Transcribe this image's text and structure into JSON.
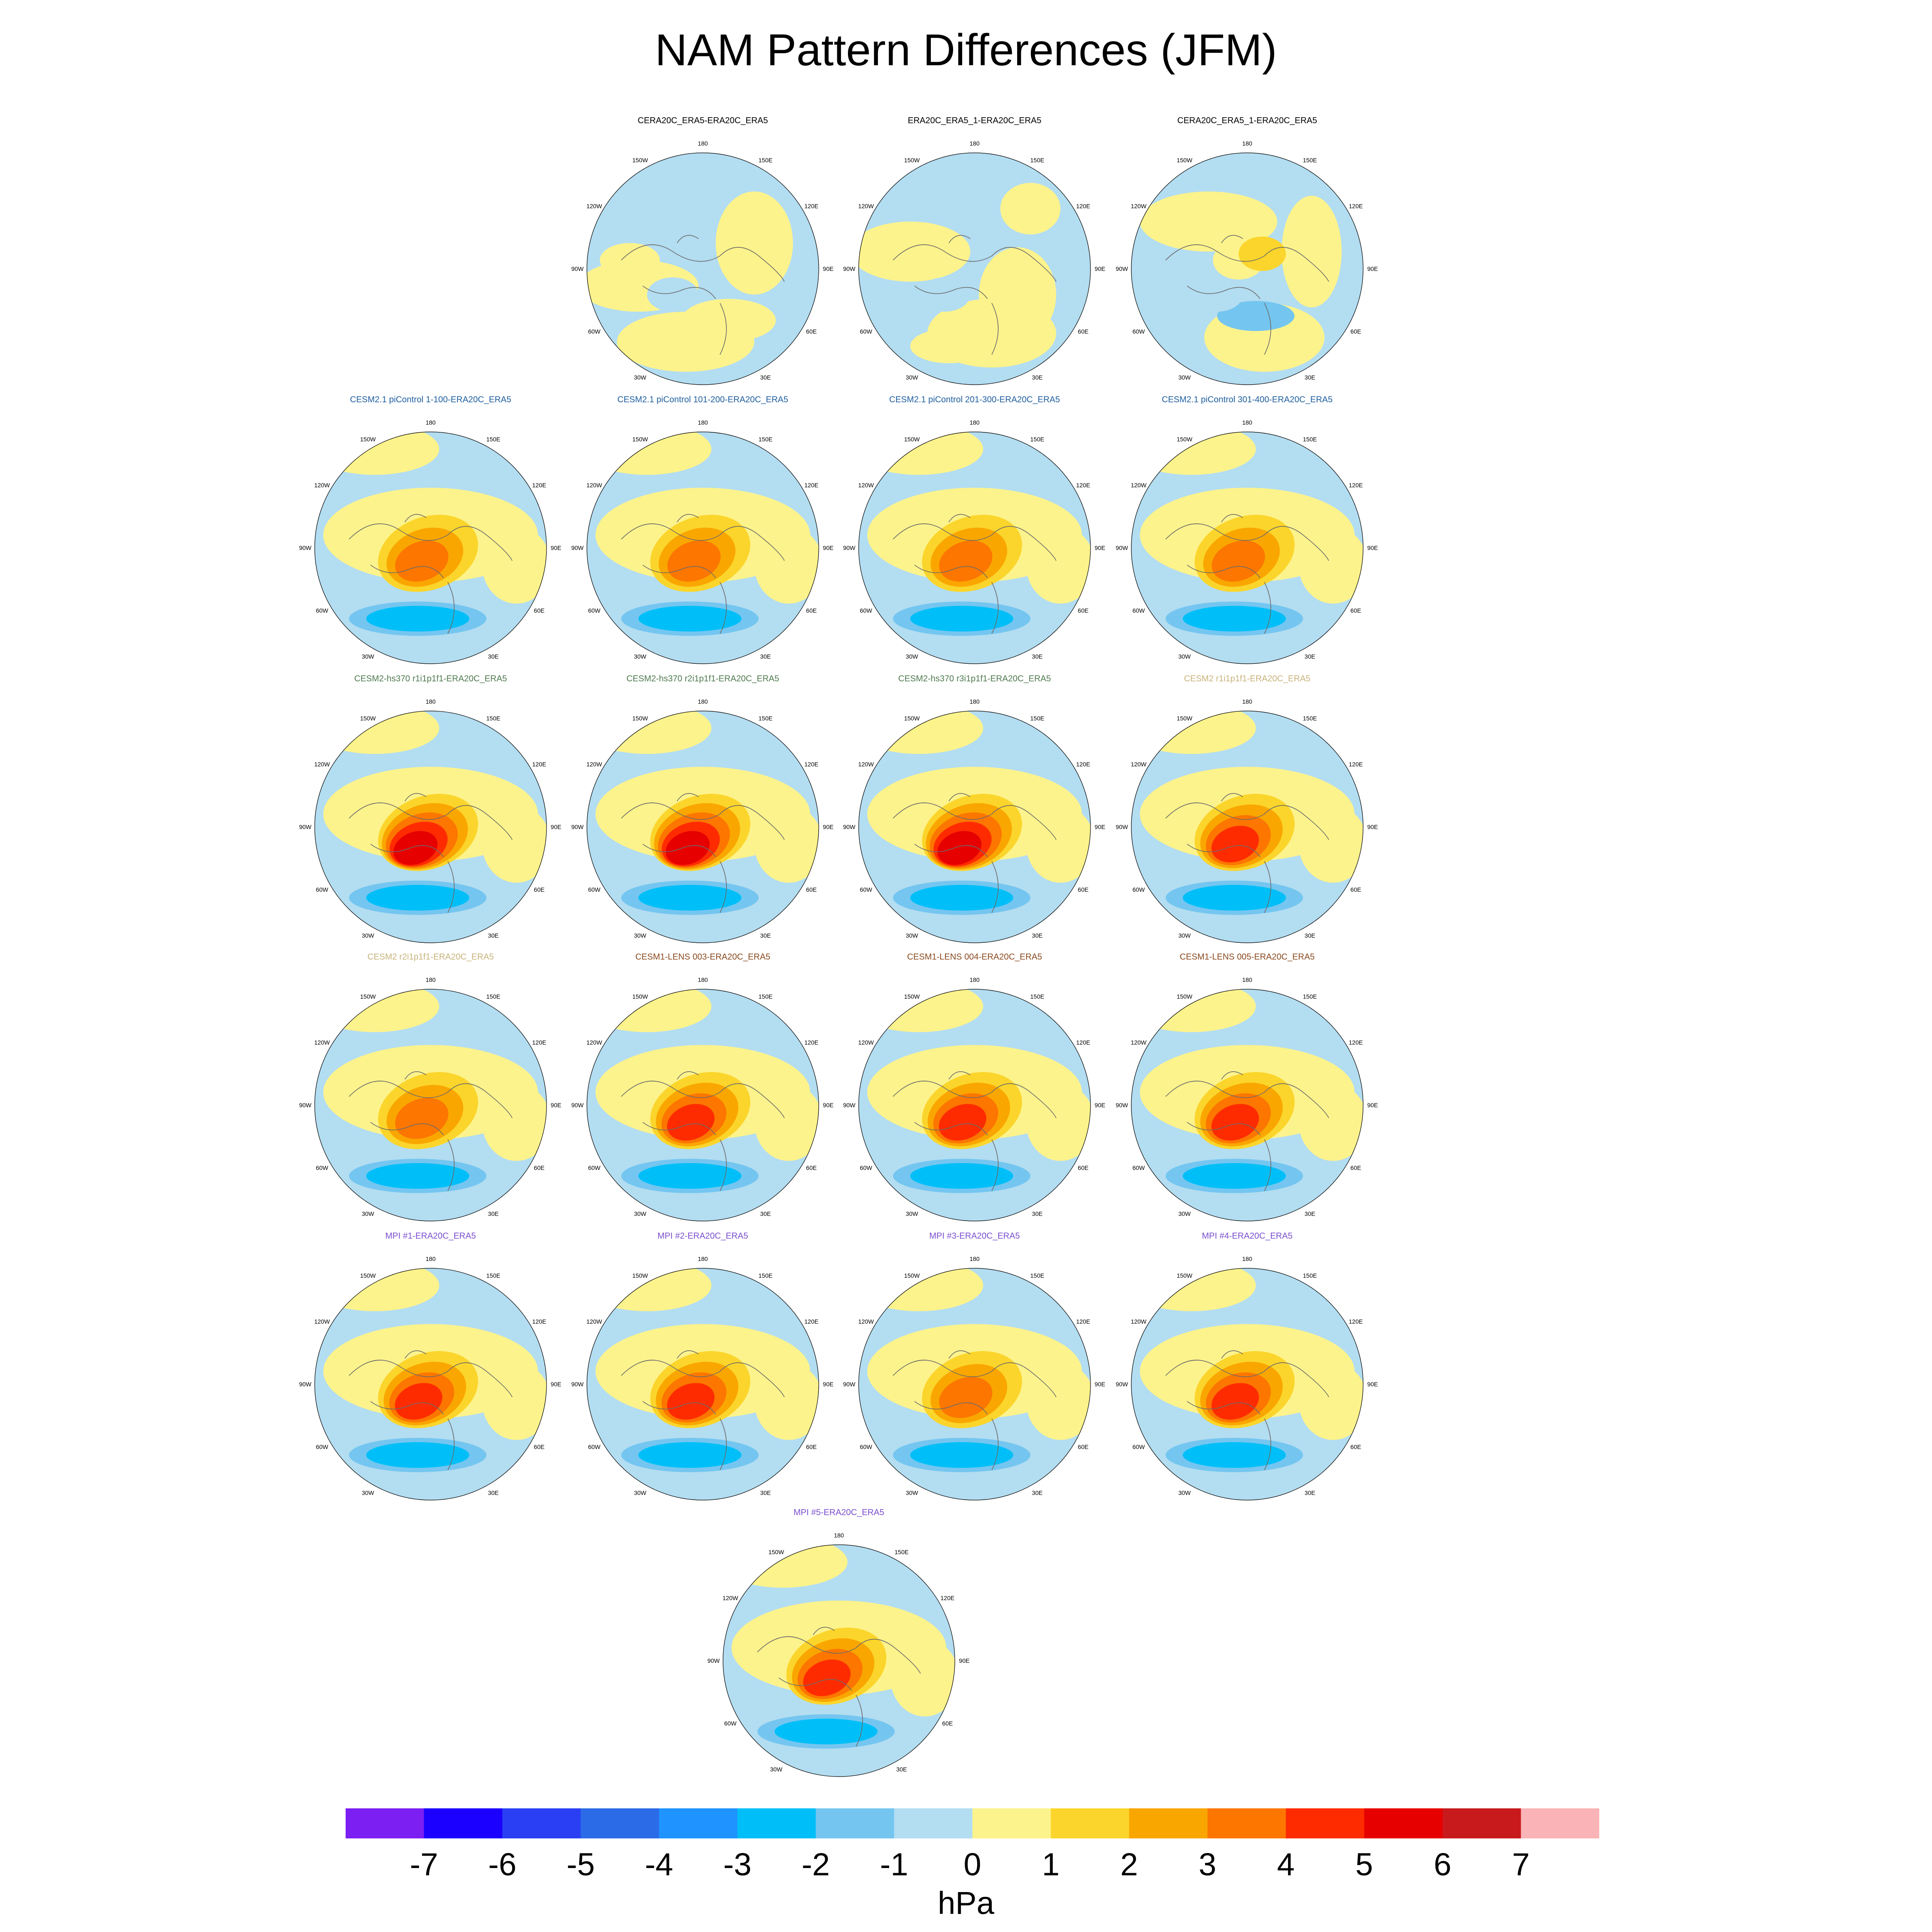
{
  "title": "NAM Pattern Differences (JFM)",
  "colors": {
    "neg_light": "#b3ddf1",
    "pos_light": "#fdf38c",
    "coast": "#6b6b6b",
    "bounds": [
      "#7b1ff3",
      "#1b00ff",
      "#2a3ff3",
      "#2c6be8",
      "#1f93ff",
      "#00bff8",
      "#74c6f0",
      "#b3ddf1",
      "#fdf38c",
      "#fbd52b",
      "#faa600",
      "#fc7600",
      "#ff2b00",
      "#e60000",
      "#c81a1d",
      "#fab3b6"
    ]
  },
  "colorbar": {
    "ticks": [
      "-7",
      "-6",
      "-5",
      "-4",
      "-3",
      "-2",
      "-1",
      "0",
      "1",
      "2",
      "3",
      "4",
      "5",
      "6",
      "7"
    ],
    "unit": "hPa"
  },
  "lon_labels": [
    "180",
    "150E",
    "120E",
    "90E",
    "60E",
    "30E",
    "0",
    "30W",
    "60W",
    "90W",
    "120W",
    "150W"
  ],
  "chart_data": {
    "type": "heatmap",
    "title": "NAM Pattern Differences (JFM)",
    "projection": "polar stereographic, Northern Hemisphere",
    "units": "hPa",
    "contour_levels": [
      -7,
      -6,
      -5,
      -4,
      -3,
      -2,
      -1,
      0,
      1,
      2,
      3,
      4,
      5,
      6,
      7
    ],
    "panels": [
      {
        "title": "CERA20C_ERA5-ERA20C_ERA5",
        "title_color": "#000000",
        "max_hPa": 0.5,
        "min_hPa": -0.5
      },
      {
        "title": "ERA20C_ERA5_1-ERA20C_ERA5",
        "title_color": "#000000",
        "max_hPa": 0.5,
        "min_hPa": -0.5
      },
      {
        "title": "CERA20C_ERA5_1-ERA20C_ERA5",
        "title_color": "#000000",
        "max_hPa": 1.5,
        "min_hPa": -1.5
      },
      {
        "title": "CESM2.1 piControl 1-100-ERA20C_ERA5",
        "title_color": "#1f5fa0",
        "max_hPa": 4,
        "min_hPa": -2.5
      },
      {
        "title": "CESM2.1 piControl 101-200-ERA20C_ERA5",
        "title_color": "#1f5fa0",
        "max_hPa": 4,
        "min_hPa": -2.5
      },
      {
        "title": "CESM2.1 piControl 201-300-ERA20C_ERA5",
        "title_color": "#1f5fa0",
        "max_hPa": 3.5,
        "min_hPa": -2.5
      },
      {
        "title": "CESM2.1 piControl 301-400-ERA20C_ERA5",
        "title_color": "#1f5fa0",
        "max_hPa": 3.5,
        "min_hPa": -2.5
      },
      {
        "title": "CESM2-hs370 r1i1p1f1-ERA20C_ERA5",
        "title_color": "#4f7a4f",
        "max_hPa": 5.5,
        "min_hPa": -2.5
      },
      {
        "title": "CESM2-hs370 r2i1p1f1-ERA20C_ERA5",
        "title_color": "#4f7a4f",
        "max_hPa": 5.5,
        "min_hPa": -2.5
      },
      {
        "title": "CESM2-hs370 r3i1p1f1-ERA20C_ERA5",
        "title_color": "#4f7a4f",
        "max_hPa": 5.5,
        "min_hPa": -2.5
      },
      {
        "title": "CESM2 r1i1p1f1-ERA20C_ERA5",
        "title_color": "#c8b37a",
        "max_hPa": 4.5,
        "min_hPa": -2.5
      },
      {
        "title": "CESM2 r2i1p1f1-ERA20C_ERA5",
        "title_color": "#c8b37a",
        "max_hPa": 4,
        "min_hPa": -3
      },
      {
        "title": "CESM1-LENS 003-ERA20C_ERA5",
        "title_color": "#8a4a1f",
        "max_hPa": 5,
        "min_hPa": -2.5
      },
      {
        "title": "CESM1-LENS 004-ERA20C_ERA5",
        "title_color": "#8a4a1f",
        "max_hPa": 5,
        "min_hPa": -2.5
      },
      {
        "title": "CESM1-LENS 005-ERA20C_ERA5",
        "title_color": "#8a4a1f",
        "max_hPa": 5,
        "min_hPa": -2.5
      },
      {
        "title": "MPI #1-ERA20C_ERA5",
        "title_color": "#7a4fd0",
        "max_hPa": 5,
        "min_hPa": -3
      },
      {
        "title": "MPI #2-ERA20C_ERA5",
        "title_color": "#7a4fd0",
        "max_hPa": 5,
        "min_hPa": -3
      },
      {
        "title": "MPI #3-ERA20C_ERA5",
        "title_color": "#7a4fd0",
        "max_hPa": 4,
        "min_hPa": -2.5
      },
      {
        "title": "MPI #4-ERA20C_ERA5",
        "title_color": "#7a4fd0",
        "max_hPa": 4.5,
        "min_hPa": -2.5
      },
      {
        "title": "MPI #5-ERA20C_ERA5",
        "title_color": "#7a4fd0",
        "max_hPa": 5,
        "min_hPa": -3
      }
    ]
  }
}
